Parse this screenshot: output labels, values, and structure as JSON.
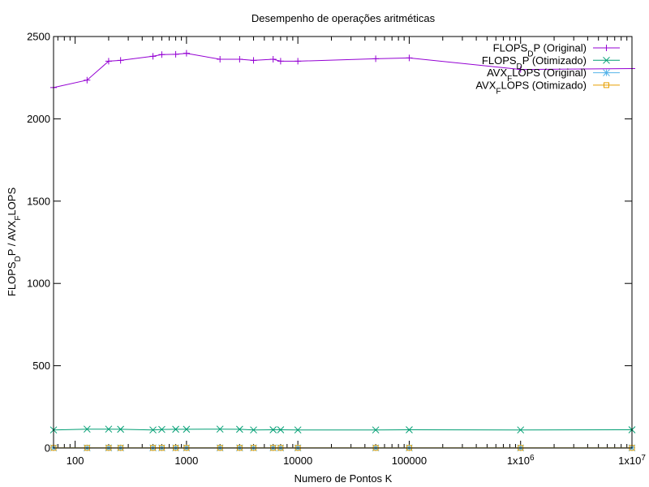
{
  "chart_data": {
    "type": "line",
    "title": "Desempenho de operações aritméticas",
    "xlabel": "Numero de Pontos K",
    "ylabel": {
      "segments": [
        {
          "text": "FLOPS",
          "sub": false
        },
        {
          "text": "D",
          "sub": true
        },
        {
          "text": "P / AVX",
          "sub": false
        },
        {
          "text": "F",
          "sub": true
        },
        {
          "text": "LOPS",
          "sub": false
        }
      ]
    },
    "xscale": "log",
    "xlim": [
      64,
      10000000
    ],
    "ylim": [
      0,
      2500
    ],
    "grid": false,
    "legend_position": "top-right",
    "xticks": [
      {
        "value": 100,
        "label": "100",
        "exp": ""
      },
      {
        "value": 1000,
        "label": "1000",
        "exp": ""
      },
      {
        "value": 10000,
        "label": "10000",
        "exp": ""
      },
      {
        "value": 100000,
        "label": "100000",
        "exp": ""
      },
      {
        "value": 1000000,
        "label": "1x10",
        "exp": "6"
      },
      {
        "value": 10000000,
        "label": "1x10",
        "exp": "7"
      }
    ],
    "yticks": [
      {
        "value": 0,
        "label": "0"
      },
      {
        "value": 500,
        "label": "500"
      },
      {
        "value": 1000,
        "label": "1000"
      },
      {
        "value": 1500,
        "label": "1500"
      },
      {
        "value": 2000,
        "label": "2000"
      },
      {
        "value": 2500,
        "label": "2500"
      }
    ],
    "x": [
      64,
      128,
      200,
      256,
      500,
      600,
      800,
      1000,
      2000,
      3000,
      4000,
      6000,
      7000,
      10000,
      50000,
      100000,
      1000000,
      10000000
    ],
    "series": [
      {
        "name": "FLOPS_DP (Original)",
        "legend": [
          {
            "text": "FLOPS",
            "sub": false
          },
          {
            "text": "D",
            "sub": true
          },
          {
            "text": "P (Original)",
            "sub": false
          }
        ],
        "color": "#9400d3",
        "marker": "plus",
        "values": [
          2190,
          2235,
          2350,
          2355,
          2380,
          2390,
          2392,
          2398,
          2362,
          2362,
          2355,
          2362,
          2350,
          2350,
          2365,
          2370,
          2300,
          2305
        ]
      },
      {
        "name": "FLOPS_DP (Otimizado)",
        "legend": [
          {
            "text": "FLOPS",
            "sub": false
          },
          {
            "text": "D",
            "sub": true
          },
          {
            "text": "P (Otimizado)",
            "sub": false
          }
        ],
        "color": "#009e73",
        "marker": "cross",
        "values": [
          110,
          115,
          115,
          114,
          110,
          113,
          114,
          114,
          115,
          114,
          110,
          111,
          111,
          110,
          110,
          111,
          110,
          111
        ]
      },
      {
        "name": "AVX_FLOPS (Original)",
        "legend": [
          {
            "text": "AVX",
            "sub": false
          },
          {
            "text": "F",
            "sub": true
          },
          {
            "text": "LOPS (Original)",
            "sub": false
          }
        ],
        "color": "#56b4e9",
        "marker": "star",
        "values": [
          1,
          1,
          1,
          1,
          1,
          1,
          1,
          1,
          1,
          1,
          1,
          1,
          1,
          1,
          1,
          1,
          1,
          1
        ]
      },
      {
        "name": "AVX_FLOPS (Otimizado)",
        "legend": [
          {
            "text": "AVX",
            "sub": false
          },
          {
            "text": "F",
            "sub": true
          },
          {
            "text": "LOPS (Otimizado)",
            "sub": false
          }
        ],
        "color": "#e69f00",
        "marker": "square",
        "values": [
          1,
          1,
          1,
          1,
          1,
          1,
          1,
          1,
          1,
          1,
          1,
          1,
          1,
          1,
          1,
          1,
          1,
          1
        ]
      }
    ]
  }
}
